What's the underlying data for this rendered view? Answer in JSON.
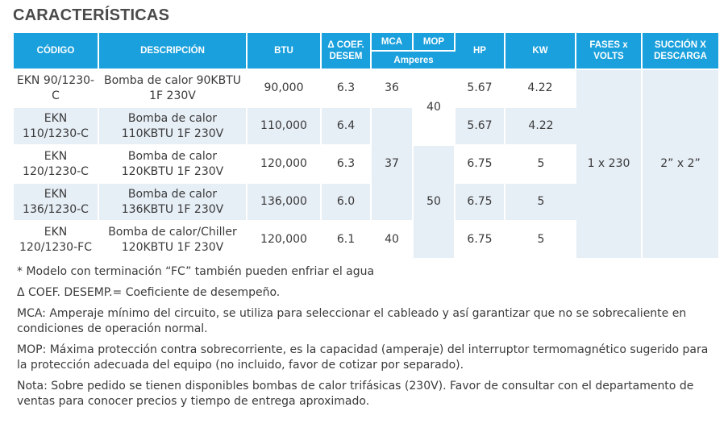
{
  "title": "CARACTERÍSTICAS",
  "table": {
    "headers": {
      "codigo": "CÓDIGO",
      "descripcion": "DESCRIPCIÓN",
      "btu": "BTU",
      "coef": "Δ COEF. DESEM",
      "mca": "MCA",
      "mop": "MOP",
      "amperes": "Amperes",
      "hp": "HP",
      "kw": "KW",
      "fases": "FASES x VOLTS",
      "succion": "SUCCIÓN X DESCARGA"
    },
    "rows": [
      {
        "codigo": "EKN 90/1230-C",
        "descripcion": "Bomba de calor 90KBTU 1F 230V",
        "btu": "90,000",
        "coef": "6.3",
        "hp": "5.67",
        "kw": "4.22"
      },
      {
        "codigo": "EKN 110/1230-C",
        "descripcion": "Bomba de calor 110KBTU 1F 230V",
        "btu": "110,000",
        "coef": "6.4",
        "hp": "5.67",
        "kw": "4.22"
      },
      {
        "codigo": "EKN 120/1230-C",
        "descripcion": "Bomba de calor 120KBTU 1F 230V",
        "btu": "120,000",
        "coef": "6.3",
        "hp": "6.75",
        "kw": "5"
      },
      {
        "codigo": "EKN 136/1230-C",
        "descripcion": "Bomba de calor 136KBTU 1F 230V",
        "btu": "136,000",
        "coef": "6.0",
        "hp": "6.75",
        "kw": "5"
      },
      {
        "codigo": "EKN 120/1230-FC",
        "descripcion": "Bomba de calor/Chiller 120KBTU 1F 230V",
        "btu": "120,000",
        "coef": "6.1",
        "hp": "6.75",
        "kw": "5"
      }
    ],
    "mca_values": [
      "36",
      "37",
      "40"
    ],
    "mop_values": [
      "40",
      "50"
    ],
    "fases": "1 x 230",
    "succion": "2” x 2”"
  },
  "notes": [
    "* Modelo con terminación “FC” también pueden enfriar el agua",
    "Δ COEF. DESEMP.= Coeficiente de desempeño.",
    "MCA: Amperaje mínimo del circuito, se utiliza para seleccionar el cableado y así garantizar que no se sobrecaliente en condiciones de operación normal.",
    "MOP: Máxima protección contra sobrecorriente, es la capacidad (amperaje) del interruptor termomagnético sugerido para la protección adecuada del equipo (no incluido, favor de cotizar por separado).",
    "Nota: Sobre pedido se tienen disponibles bombas de calor trifásicas (230V). Favor de consultar con el departamento de ventas para conocer precios y tiempo de entrega aproximado."
  ]
}
